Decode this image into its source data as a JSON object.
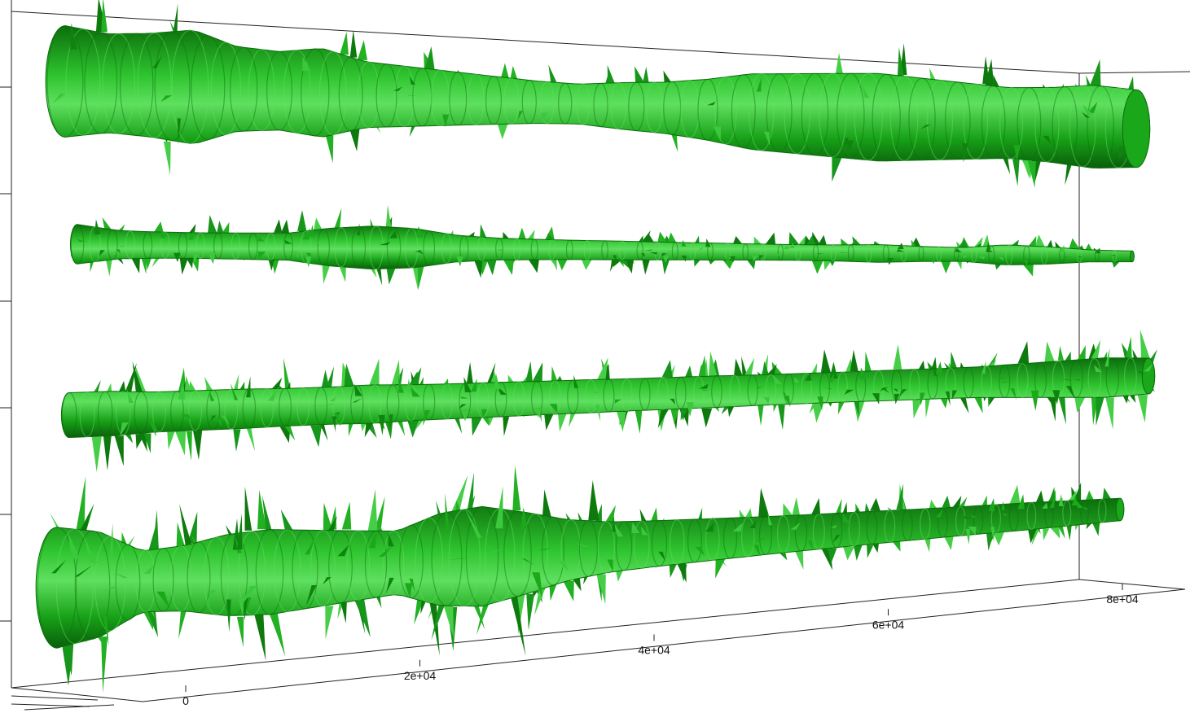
{
  "chart_data": {
    "type": "3d-tube",
    "title": "",
    "xlabel": "",
    "ylabel": "",
    "x_ticks": [
      "0",
      "2e+04",
      "4e+04",
      "6e+04",
      "8e+04"
    ],
    "x_tick_values": [
      0,
      20000,
      40000,
      60000,
      80000
    ],
    "xlim": [
      0,
      85000
    ],
    "grid": false,
    "legend": "none",
    "tube_color": "#1aa81a",
    "tube_dark": "#0b6e0b",
    "tube_light": "#5fe05f",
    "series": [
      {
        "profile": [
          0.95,
          0.85,
          0.9,
          1.0,
          0.75,
          0.7,
          0.8,
          0.6,
          0.55,
          0.5,
          0.45,
          0.4,
          0.38,
          0.45,
          0.5,
          0.6,
          0.75,
          0.8,
          0.85,
          0.9,
          0.85,
          0.8,
          0.75,
          0.8,
          0.9,
          0.85
        ],
        "spikes": 0.15
      },
      {
        "profile": [
          0.55,
          0.4,
          0.38,
          0.38,
          0.4,
          0.42,
          0.6,
          0.7,
          0.65,
          0.45,
          0.38,
          0.36,
          0.35,
          0.35,
          0.34,
          0.34,
          0.33,
          0.33,
          0.35,
          0.4,
          0.35,
          0.33,
          0.5,
          0.45,
          0.32,
          0.3
        ],
        "spikes": 0.55
      },
      {
        "profile": [
          0.55,
          0.55,
          0.5,
          0.5,
          0.5,
          0.48,
          0.48,
          0.5,
          0.47,
          0.46,
          0.46,
          0.45,
          0.45,
          0.44,
          0.44,
          0.44,
          0.43,
          0.43,
          0.43,
          0.44,
          0.44,
          0.45,
          0.5,
          0.55,
          0.6,
          0.55
        ],
        "spikes": 0.8
      },
      {
        "profile": [
          0.95,
          0.85,
          0.5,
          0.55,
          0.7,
          0.75,
          0.7,
          0.65,
          0.6,
          0.9,
          1.0,
          0.85,
          0.65,
          0.55,
          0.52,
          0.5,
          0.48,
          0.46,
          0.45,
          0.44,
          0.43,
          0.42,
          0.42,
          0.42,
          0.4,
          0.38
        ],
        "spikes": 0.7
      }
    ]
  }
}
